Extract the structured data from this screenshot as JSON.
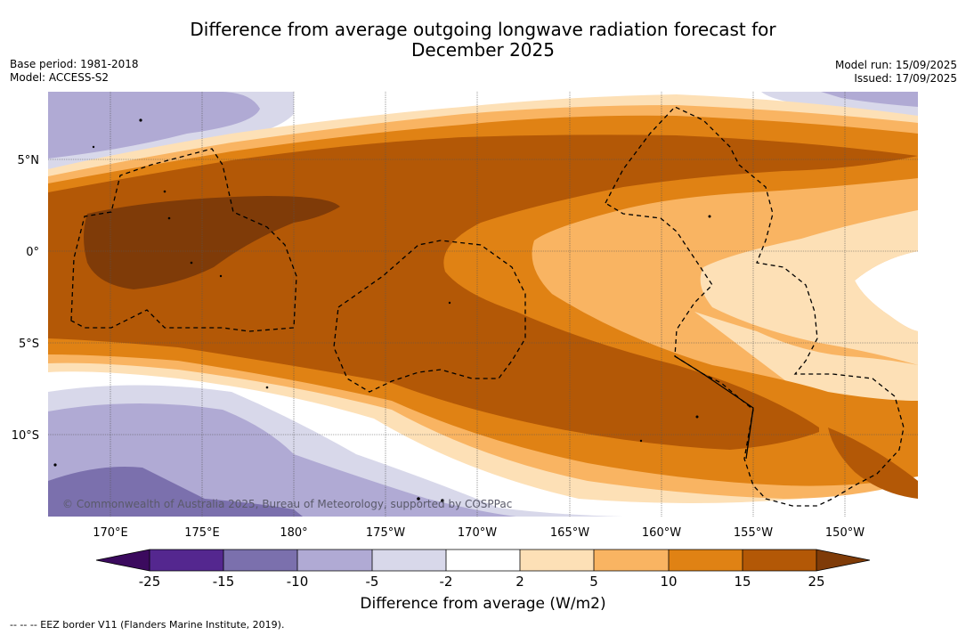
{
  "title_line1": "Difference from average outgoing longwave radiation forecast for",
  "title_line2": "December 2025",
  "base_period": "Base period: 1981-2018",
  "model": "Model: ACCESS-S2",
  "model_run": "Model run: 15/09/2025",
  "issued": "Issued: 17/09/2025",
  "lon_labels": [
    "170°E",
    "175°E",
    "180°",
    "175°W",
    "170°W",
    "165°W",
    "160°W",
    "155°W",
    "150°W"
  ],
  "lat_labels": [
    "5°N",
    "0°",
    "5°S",
    "10°S"
  ],
  "copyright": "© Commonwealth of Australia 2025, Bureau of Meteorology, supported by COSPPac",
  "colorbar": {
    "title": "Difference from average (W/m2)",
    "ticks": [
      "-25",
      "-15",
      "-10",
      "-5",
      "-2",
      "2",
      "5",
      "10",
      "15",
      "25"
    ],
    "colors": {
      "lt-25": "#3b0a5e",
      "-25_-15": "#54278f",
      "-15_-10": "#7b70ad",
      "-10_-5": "#b0aad4",
      "-5_-2": "#d8d8ea",
      "-2_2": "#ffffff",
      "2_5": "#fde0b6",
      "5_10": "#f9b462",
      "10_15": "#e08214",
      "15_25": "#b35806",
      "gt25": "#7f3b08"
    }
  },
  "footnote": "--  --  -- EEZ border V11 (Flanders Marine Institute, 2019)."
}
